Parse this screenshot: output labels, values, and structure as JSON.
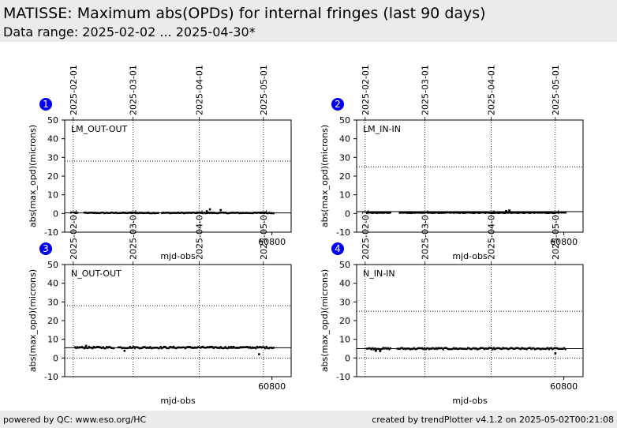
{
  "header": {
    "title": "MATISSE: Maximum abs(OPDs) for internal fringes (last 90 days)",
    "subtitle": "Data range: 2025-02-02 ... 2025-04-30*"
  },
  "footer": {
    "left": "powered by QC: www.eso.org/HC",
    "right": "created by trendPlotter v4.1.2 on 2025-05-02T00:21:08"
  },
  "colors": {
    "badge": "#0000ee",
    "points": "#000000",
    "header_bg": "#ebebeb"
  },
  "chart_data": [
    {
      "type": "scatter",
      "badge": "1",
      "label": "LM_OUT-OUT",
      "xlabel": "mjd-obs",
      "ylabel": "abs(max_opd)(microns)",
      "xlim": [
        60703,
        60809
      ],
      "ylim": [
        -10,
        50
      ],
      "yticks": [
        -10,
        0,
        10,
        20,
        30,
        40,
        50
      ],
      "xticks": [
        60800
      ],
      "xtick_labels": [
        "60800"
      ],
      "date_ticks": [
        {
          "x": 60707,
          "label": "2025-02-01"
        },
        {
          "x": 60735,
          "label": "2025-03-01"
        },
        {
          "x": 60766,
          "label": "2025-04-01"
        },
        {
          "x": 60796,
          "label": "2025-05-01"
        }
      ],
      "reference_lines": [
        28,
        0.3
      ],
      "base_level": 0.3,
      "noise": 0.4,
      "outliers": [
        {
          "x": 60769.5,
          "y": 1.2
        },
        {
          "x": 60771,
          "y": 2.2
        },
        {
          "x": 60776,
          "y": 1.8
        }
      ],
      "gaps": [
        [
          60709,
          60712
        ],
        [
          60747,
          60748
        ]
      ]
    },
    {
      "type": "scatter",
      "badge": "2",
      "label": "LM_IN-IN",
      "xlabel": "mjd-obs",
      "ylabel": "abs(max_opd)(microns)",
      "xlim": [
        60703,
        60809
      ],
      "ylim": [
        -10,
        50
      ],
      "yticks": [
        -10,
        0,
        10,
        20,
        30,
        40,
        50
      ],
      "xticks": [
        60800
      ],
      "xtick_labels": [
        "60800"
      ],
      "date_ticks": [
        {
          "x": 60707,
          "label": "2025-02-01"
        },
        {
          "x": 60735,
          "label": "2025-03-01"
        },
        {
          "x": 60766,
          "label": "2025-04-01"
        },
        {
          "x": 60796,
          "label": "2025-05-01"
        }
      ],
      "reference_lines": [
        25,
        1
      ],
      "base_level": 0.4,
      "noise": 0.4,
      "outliers": [
        {
          "x": 60773,
          "y": 1.3
        },
        {
          "x": 60774.5,
          "y": 1.6
        }
      ],
      "gaps": [
        [
          60719,
          60723
        ]
      ]
    },
    {
      "type": "scatter",
      "badge": "3",
      "label": "N_OUT-OUT",
      "xlabel": "mjd-obs",
      "ylabel": "abs(max_opd)(microns)",
      "xlim": [
        60703,
        60809
      ],
      "ylim": [
        -10,
        50
      ],
      "yticks": [
        -10,
        0,
        10,
        20,
        30,
        40,
        50
      ],
      "xticks": [
        60800
      ],
      "xtick_labels": [
        "60800"
      ],
      "date_ticks": [
        {
          "x": 60707,
          "label": "2025-02-01"
        },
        {
          "x": 60735,
          "label": "2025-03-01"
        },
        {
          "x": 60766,
          "label": "2025-04-01"
        },
        {
          "x": 60796,
          "label": "2025-05-01"
        }
      ],
      "reference_lines": [
        28,
        5.5,
        0
      ],
      "base_level": 5.6,
      "noise": 0.9,
      "outliers": [
        {
          "x": 60713,
          "y": 6.5
        },
        {
          "x": 60731,
          "y": 3.8
        },
        {
          "x": 60794,
          "y": 2.0
        }
      ],
      "gaps": [
        [
          60726,
          60728
        ]
      ]
    },
    {
      "type": "scatter",
      "badge": "4",
      "label": "N_IN-IN",
      "xlabel": "mjd-obs",
      "ylabel": "abs(max_opd)(microns)",
      "xlim": [
        60703,
        60809
      ],
      "ylim": [
        -10,
        50
      ],
      "yticks": [
        -10,
        0,
        10,
        20,
        30,
        40,
        50
      ],
      "xticks": [
        60800
      ],
      "xtick_labels": [
        "60800"
      ],
      "date_ticks": [
        {
          "x": 60707,
          "label": "2025-02-01"
        },
        {
          "x": 60735,
          "label": "2025-03-01"
        },
        {
          "x": 60766,
          "label": "2025-04-01"
        },
        {
          "x": 60796,
          "label": "2025-05-01"
        }
      ],
      "reference_lines": [
        25,
        5,
        0
      ],
      "base_level": 5.0,
      "noise": 0.8,
      "outliers": [
        {
          "x": 60712,
          "y": 3.8
        },
        {
          "x": 60714,
          "y": 3.7
        },
        {
          "x": 60796,
          "y": 2.5
        }
      ],
      "gaps": [
        [
          60719,
          60722
        ]
      ]
    }
  ]
}
